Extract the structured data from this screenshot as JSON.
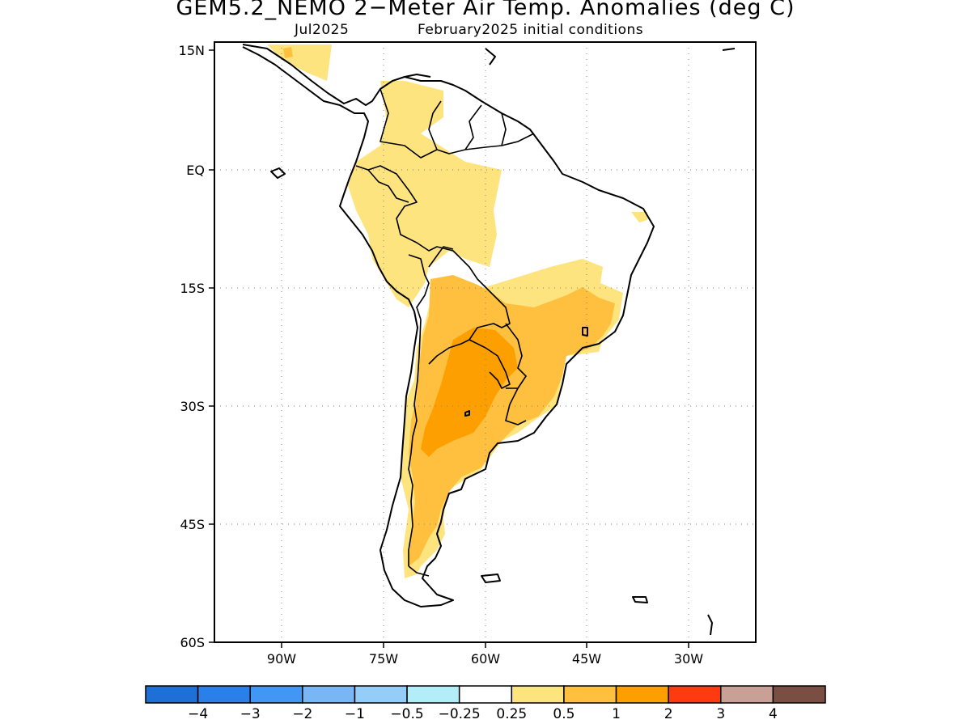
{
  "title": {
    "main": "GEM5.2_NEMO 2−Meter Air Temp. Anomalies (deg C)",
    "valid_month": "Jul2025",
    "initial_conditions": "February2025 initial conditions"
  },
  "map": {
    "lat_ticks": [
      {
        "value": 15,
        "label": "15N"
      },
      {
        "value": 0,
        "label": "EQ"
      },
      {
        "value": -15,
        "label": "15S"
      },
      {
        "value": -30,
        "label": "30S"
      },
      {
        "value": -45,
        "label": "45S"
      },
      {
        "value": -60,
        "label": "60S"
      }
    ],
    "lon_ticks": [
      {
        "value": -90,
        "label": "90W"
      },
      {
        "value": -75,
        "label": "75W"
      },
      {
        "value": -60,
        "label": "60W"
      },
      {
        "value": -45,
        "label": "45W"
      },
      {
        "value": -30,
        "label": "30W"
      }
    ],
    "extent": {
      "lon": [
        -100,
        -20
      ],
      "lat": [
        -60,
        16
      ]
    },
    "gridlines": "dotted"
  },
  "colorbar": {
    "labels": [
      "−4",
      "−3",
      "−2",
      "−1",
      "−0.5",
      "−0.25",
      "0.25",
      "0.5",
      "1",
      "2",
      "3",
      "4"
    ],
    "colors": [
      "#1e6fd6",
      "#2a7fe8",
      "#4197f3",
      "#78b6f5",
      "#94cdf7",
      "#b3eef8",
      "#ffffff",
      "#fde47f",
      "#fec03e",
      "#fe9f00",
      "#fe3a10",
      "#c9a095",
      "#7a4e42"
    ]
  },
  "anomaly_regions": [
    {
      "level": "0.25-0.5",
      "color": "#fde47f",
      "area": "northern and western South America, Andes, Patagonia"
    },
    {
      "level": "0.5-1",
      "color": "#fec03e",
      "area": "Bolivia, Paraguay, southern Brazil, Argentina"
    },
    {
      "level": "1-2",
      "color": "#fe9f00",
      "area": "northern Argentina, Paraguay"
    }
  ]
}
